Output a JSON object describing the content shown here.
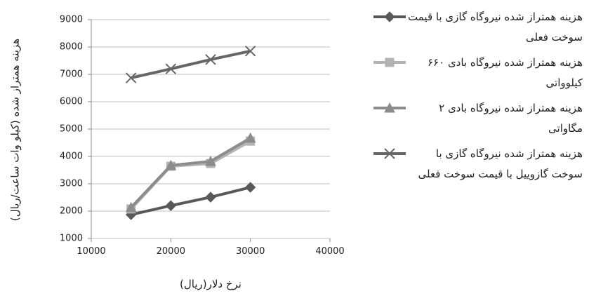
{
  "chart_data": {
    "type": "line",
    "y_label": "هزینه همتراز شده (کیلو وات ساعت/ریال)",
    "x_label": "نرخ دلار(ریال)",
    "x": [
      15000,
      20000,
      25000,
      30000
    ],
    "xlim": [
      10000,
      40000
    ],
    "xticks": [
      10000,
      20000,
      30000,
      40000
    ],
    "ylim": [
      1000,
      9000
    ],
    "yticks": [
      1000,
      2000,
      3000,
      4000,
      5000,
      6000,
      7000,
      8000,
      9000
    ],
    "grid": true,
    "series": [
      {
        "name": "هزینه همتراز شده نیروگاه گازی با قیمت سوخت فعلی",
        "color": "#595959",
        "marker": "diamond",
        "values": [
          1870,
          2200,
          2510,
          2870
        ]
      },
      {
        "name": "هزینه همتراز شده نیروگاه بادی ۶۶۰ کیلوواتی",
        "color": "#b3b3b3",
        "marker": "square",
        "values": [
          2080,
          3640,
          3740,
          4560
        ]
      },
      {
        "name": "هزینه همتراز شده نیروگاه بادی ۲ مگاواتی",
        "color": "#8c8c8c",
        "marker": "triangle",
        "values": [
          2130,
          3670,
          3820,
          4670
        ]
      },
      {
        "name": "هزینه همتراز شده نیروگاه گازی با سوخت گازوییل با قیمت سوخت فعلی",
        "color": "#666666",
        "marker": "x",
        "values": [
          6870,
          7200,
          7540,
          7850
        ]
      }
    ]
  }
}
